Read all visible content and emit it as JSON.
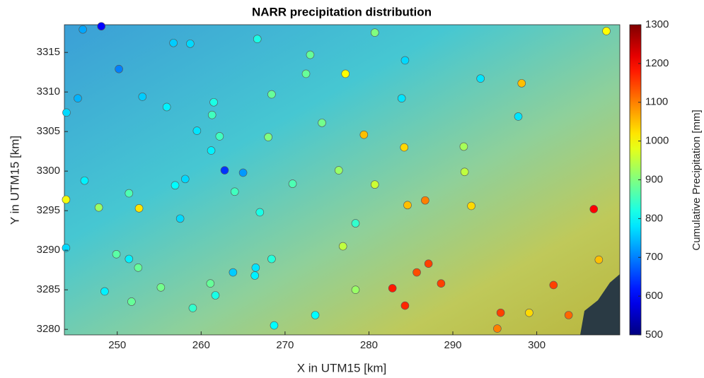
{
  "chart_data": {
    "type": "scatter",
    "title": "NARR precipitation distribution",
    "x_label": "X in UTM15 [km]",
    "y_label": "Y in UTM15 [km]",
    "colorbar_label": "Cumulative Precipitation [mm]",
    "colormap": "jet",
    "xlim": [
      243.7,
      309.9
    ],
    "ylim": [
      3279.3,
      3318.5
    ],
    "xticks": [
      250,
      260,
      270,
      280,
      290,
      300
    ],
    "yticks": [
      3280,
      3285,
      3290,
      3295,
      3300,
      3305,
      3310,
      3315
    ],
    "clim": [
      500,
      1300
    ],
    "cticks": [
      500,
      600,
      700,
      800,
      900,
      1000,
      1100,
      1200,
      1300
    ],
    "x": [
      245.9,
      248.1,
      250.2,
      256.7,
      258.7,
      266.7,
      273.0,
      280.7,
      284.3,
      308.3,
      277.2,
      272.5,
      293.3,
      298.2,
      245.3,
      253.0,
      268.4,
      283.9,
      243.95,
      255.9,
      261.5,
      261.3,
      297.8,
      274.4,
      259.5,
      279.4,
      262.2,
      268.0,
      291.3,
      284.2,
      261.2,
      262.8,
      265.0,
      276.4,
      291.4,
      258.1,
      256.9,
      246.1,
      270.9,
      280.7,
      264.0,
      251.4,
      243.9,
      286.7,
      284.6,
      292.2,
      247.8,
      252.6,
      306.8,
      267.0,
      257.5,
      278.4,
      243.9,
      276.9,
      249.9,
      251.4,
      268.4,
      307.4,
      287.1,
      252.5,
      266.5,
      285.7,
      263.8,
      266.4,
      261.1,
      302.0,
      288.6,
      255.2,
      282.8,
      278.4,
      248.5,
      261.7,
      251.7,
      284.3,
      259.0,
      273.6,
      295.7,
      299.1,
      303.8,
      295.3,
      268.7
    ],
    "y": [
      3317.9,
      3318.3,
      3312.9,
      3316.2,
      3316.1,
      3316.7,
      3314.7,
      3317.5,
      3314.0,
      3317.7,
      3312.3,
      3312.3,
      3311.7,
      3311.1,
      3309.2,
      3309.4,
      3309.7,
      3309.2,
      3307.4,
      3308.1,
      3308.7,
      3307.1,
      3306.9,
      3306.1,
      3305.1,
      3304.6,
      3304.4,
      3304.3,
      3303.1,
      3303.0,
      3302.6,
      3300.1,
      3299.8,
      3300.1,
      3299.9,
      3299.0,
      3298.2,
      3298.8,
      3298.4,
      3298.3,
      3297.4,
      3297.2,
      3296.4,
      3296.3,
      3295.7,
      3295.6,
      3295.4,
      3295.3,
      3295.2,
      3294.8,
      3294.0,
      3293.4,
      3290.3,
      3290.5,
      3289.5,
      3288.9,
      3288.9,
      3288.8,
      3288.3,
      3287.8,
      3287.8,
      3287.2,
      3287.2,
      3286.8,
      3285.8,
      3285.6,
      3285.8,
      3285.3,
      3285.2,
      3285.0,
      3284.8,
      3284.3,
      3283.5,
      3283.0,
      3282.7,
      3281.8,
      3282.1,
      3282.1,
      3281.8,
      3280.1,
      3280.5
    ],
    "values": [
      730,
      600,
      700,
      760,
      770,
      820,
      880,
      900,
      770,
      1000,
      1000,
      880,
      780,
      1050,
      740,
      760,
      880,
      780,
      770,
      790,
      820,
      850,
      780,
      890,
      780,
      1050,
      850,
      900,
      930,
      1030,
      790,
      640,
      720,
      920,
      950,
      770,
      800,
      790,
      860,
      960,
      850,
      860,
      990,
      1100,
      1050,
      1030,
      920,
      1020,
      1200,
      820,
      770,
      840,
      770,
      950,
      870,
      790,
      830,
      1050,
      1150,
      880,
      780,
      1140,
      760,
      790,
      880,
      1150,
      1150,
      890,
      1180,
      920,
      790,
      820,
      880,
      1170,
      840,
      800,
      1150,
      1030,
      1120,
      1100,
      800
    ]
  }
}
